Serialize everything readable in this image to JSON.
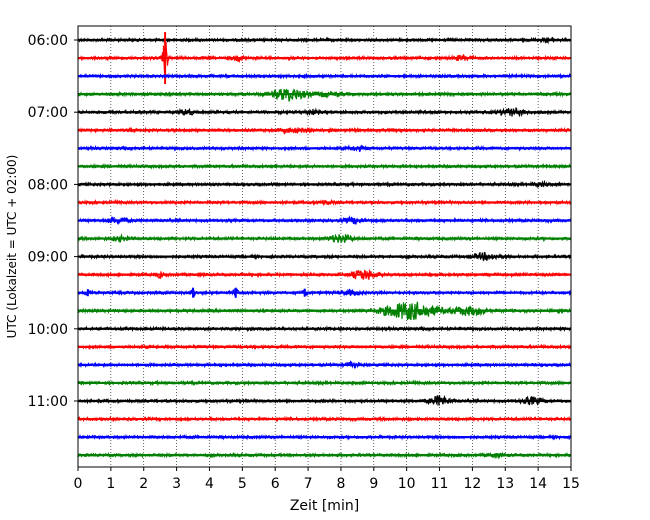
{
  "chart_data": {
    "type": "line",
    "xlabel": "Zeit  [min]",
    "ylabel": "UTC (Lokalzeit = UTC + 02:00)",
    "xlim": [
      0,
      15
    ],
    "x_ticks": [
      "0",
      "1",
      "2",
      "3",
      "4",
      "5",
      "6",
      "7",
      "8",
      "9",
      "10",
      "11",
      "12",
      "13",
      "14",
      "15"
    ],
    "vertical_grid": "dotted",
    "hour_labels": [
      {
        "label": "06:00",
        "row": 0
      },
      {
        "label": "07:00",
        "row": 4
      },
      {
        "label": "08:00",
        "row": 8
      },
      {
        "label": "09:00",
        "row": 12
      },
      {
        "label": "10:00",
        "row": 16
      },
      {
        "label": "11:00",
        "row": 20
      }
    ],
    "row_interval_minutes": 15,
    "color_cycle": [
      "#000000",
      "#ff0000",
      "#0000ff",
      "#008000"
    ],
    "rows": [
      {
        "start": "06:00",
        "color": "#000000",
        "events": [
          {
            "t": 14.3,
            "amp": 0.25,
            "w": 0.3
          }
        ]
      },
      {
        "start": "06:15",
        "color": "#ff0000",
        "events": [
          {
            "t": 2.65,
            "amp": 2.6,
            "w": 0.08
          },
          {
            "t": 4.9,
            "amp": 0.3,
            "w": 0.2
          },
          {
            "t": 11.7,
            "amp": 0.35,
            "w": 0.25
          }
        ]
      },
      {
        "start": "06:30",
        "color": "#0000ff",
        "events": []
      },
      {
        "start": "06:45",
        "color": "#008000",
        "events": [
          {
            "t": 6.4,
            "amp": 0.9,
            "w": 0.5
          },
          {
            "t": 7.6,
            "amp": 0.3,
            "w": 0.4
          }
        ]
      },
      {
        "start": "07:00",
        "color": "#000000",
        "events": [
          {
            "t": 3.3,
            "amp": 0.45,
            "w": 0.2
          },
          {
            "t": 7.1,
            "amp": 0.35,
            "w": 0.2
          },
          {
            "t": 13.2,
            "amp": 0.5,
            "w": 0.4
          }
        ]
      },
      {
        "start": "07:15",
        "color": "#ff0000",
        "events": [
          {
            "t": 6.6,
            "amp": 0.3,
            "w": 0.4
          }
        ]
      },
      {
        "start": "07:30",
        "color": "#0000ff",
        "events": [
          {
            "t": 8.5,
            "amp": 0.3,
            "w": 0.25
          }
        ]
      },
      {
        "start": "07:45",
        "color": "#008000",
        "events": []
      },
      {
        "start": "08:00",
        "color": "#000000",
        "events": [
          {
            "t": 14.1,
            "amp": 0.3,
            "w": 0.2
          }
        ]
      },
      {
        "start": "08:15",
        "color": "#ff0000",
        "events": [
          {
            "t": 7.5,
            "amp": 0.25,
            "w": 0.2
          }
        ]
      },
      {
        "start": "08:30",
        "color": "#0000ff",
        "events": [
          {
            "t": 1.2,
            "amp": 0.4,
            "w": 0.3
          },
          {
            "t": 8.4,
            "amp": 0.4,
            "w": 0.3
          }
        ]
      },
      {
        "start": "08:45",
        "color": "#008000",
        "events": [
          {
            "t": 1.3,
            "amp": 0.3,
            "w": 0.3
          },
          {
            "t": 8.0,
            "amp": 0.55,
            "w": 0.35
          }
        ]
      },
      {
        "start": "09:00",
        "color": "#000000",
        "events": [
          {
            "t": 12.4,
            "amp": 0.45,
            "w": 0.4
          }
        ]
      },
      {
        "start": "09:15",
        "color": "#ff0000",
        "events": [
          {
            "t": 2.5,
            "amp": 0.35,
            "w": 0.15
          },
          {
            "t": 8.7,
            "amp": 0.7,
            "w": 0.35
          }
        ]
      },
      {
        "start": "09:30",
        "color": "#0000ff",
        "events": [
          {
            "t": 0.3,
            "amp": 0.35,
            "w": 0.1
          },
          {
            "t": 3.5,
            "amp": 0.5,
            "w": 0.08
          },
          {
            "t": 4.8,
            "amp": 0.5,
            "w": 0.08
          },
          {
            "t": 6.9,
            "amp": 0.4,
            "w": 0.08
          },
          {
            "t": 8.3,
            "amp": 0.3,
            "w": 0.3
          }
        ]
      },
      {
        "start": "09:45",
        "color": "#008000",
        "events": [
          {
            "t": 10.1,
            "amp": 1.3,
            "w": 0.8
          },
          {
            "t": 11.9,
            "amp": 0.6,
            "w": 0.5
          }
        ]
      },
      {
        "start": "10:00",
        "color": "#000000",
        "events": []
      },
      {
        "start": "10:15",
        "color": "#ff0000",
        "events": []
      },
      {
        "start": "10:30",
        "color": "#0000ff",
        "events": [
          {
            "t": 8.3,
            "amp": 0.3,
            "w": 0.2
          }
        ]
      },
      {
        "start": "10:45",
        "color": "#008000",
        "events": []
      },
      {
        "start": "11:00",
        "color": "#000000",
        "events": [
          {
            "t": 11.0,
            "amp": 0.7,
            "w": 0.3
          },
          {
            "t": 13.8,
            "amp": 0.5,
            "w": 0.3
          }
        ]
      },
      {
        "start": "11:15",
        "color": "#ff0000",
        "events": []
      },
      {
        "start": "11:30",
        "color": "#0000ff",
        "events": []
      },
      {
        "start": "11:45",
        "color": "#008000",
        "events": [
          {
            "t": 12.7,
            "amp": 0.3,
            "w": 0.2
          }
        ]
      }
    ]
  }
}
